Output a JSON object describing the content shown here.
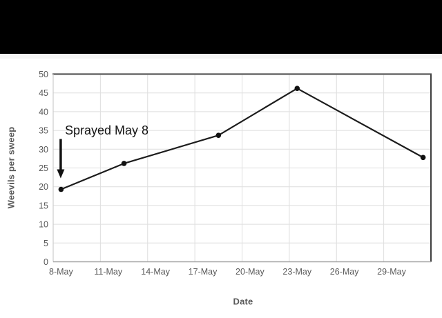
{
  "window": {
    "top_letterbox_color": "#000000",
    "page_background": "#ffffff"
  },
  "chart_data": {
    "type": "line",
    "title": "",
    "xlabel": "Date",
    "ylabel": "Weevils per sweep",
    "ylim": [
      0,
      50
    ],
    "y_tick_step": 5,
    "y_tick_labels": [
      "0",
      "5",
      "10",
      "15",
      "20",
      "25",
      "30",
      "35",
      "40",
      "45",
      "50"
    ],
    "x_axis_days_span": 24,
    "x_ticks": [
      {
        "label": "8-May",
        "day": 0
      },
      {
        "label": "11-May",
        "day": 3
      },
      {
        "label": "14-May",
        "day": 6
      },
      {
        "label": "17-May",
        "day": 9
      },
      {
        "label": "20-May",
        "day": 12
      },
      {
        "label": "23-May",
        "day": 15
      },
      {
        "label": "26-May",
        "day": 18
      },
      {
        "label": "29-May",
        "day": 21
      }
    ],
    "x_grid_days": [
      3,
      6,
      9,
      12,
      15,
      18,
      21
    ],
    "grid": "both",
    "legend": "none",
    "series": [
      {
        "name": "Weevils per sweep",
        "points": [
          {
            "date": "8-May",
            "day": 0,
            "value": 19.3
          },
          {
            "date": "12-May",
            "day": 4,
            "value": 26.2
          },
          {
            "date": "18-May",
            "day": 10,
            "value": 33.7
          },
          {
            "date": "23-May",
            "day": 15,
            "value": 46.2
          },
          {
            "date": "31-May",
            "day": 23,
            "value": 27.8
          }
        ]
      }
    ],
    "annotation": {
      "text": "Sprayed May 8",
      "arrow_points_to_date": "8-May"
    },
    "colors": {
      "series_line": "#1c1c1c",
      "marker": "#111111",
      "gridline": "#dedede",
      "plot_border_top": "#6b6b6b",
      "plot_border_right": "#3d3d3d",
      "plot_border_left": "#cccccc",
      "axis_line": "#a3a3a3",
      "tick_label": "#595959",
      "annotation_text": "#141414"
    }
  }
}
